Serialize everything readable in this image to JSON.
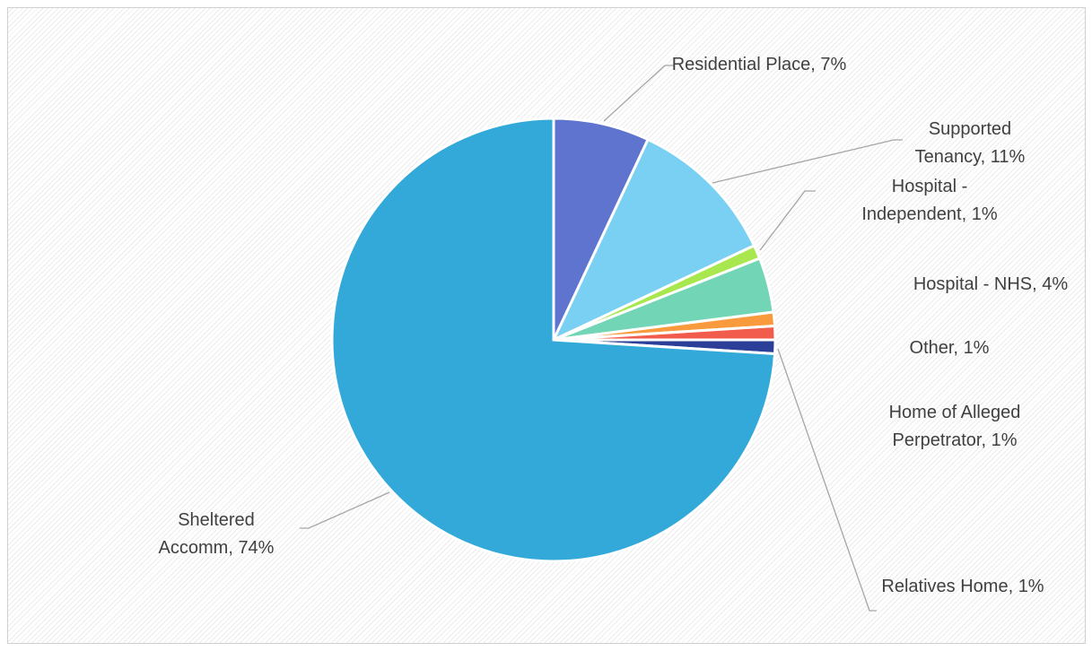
{
  "chart_data": {
    "type": "pie",
    "categories": [
      "Residential Place,",
      "Supported Tenancy,",
      "Hospital - Independent,",
      "Hospital - NHS,",
      "Other,",
      "Home of Alleged Perpetrator,",
      "Relatives Home,",
      "Sheltered Accomm,"
    ],
    "values": [
      7,
      11,
      1,
      4,
      1,
      1,
      1,
      74
    ],
    "value_labels": [
      "7%",
      "11%",
      "1%",
      "4%",
      "1%",
      "1%",
      "1%",
      "74%"
    ],
    "colors": [
      "#5f74cf",
      "#79d0f2",
      "#a8e84e",
      "#72d6b6",
      "#f99a3c",
      "#f25c4c",
      "#2b3f98",
      "#32a9d8"
    ]
  }
}
